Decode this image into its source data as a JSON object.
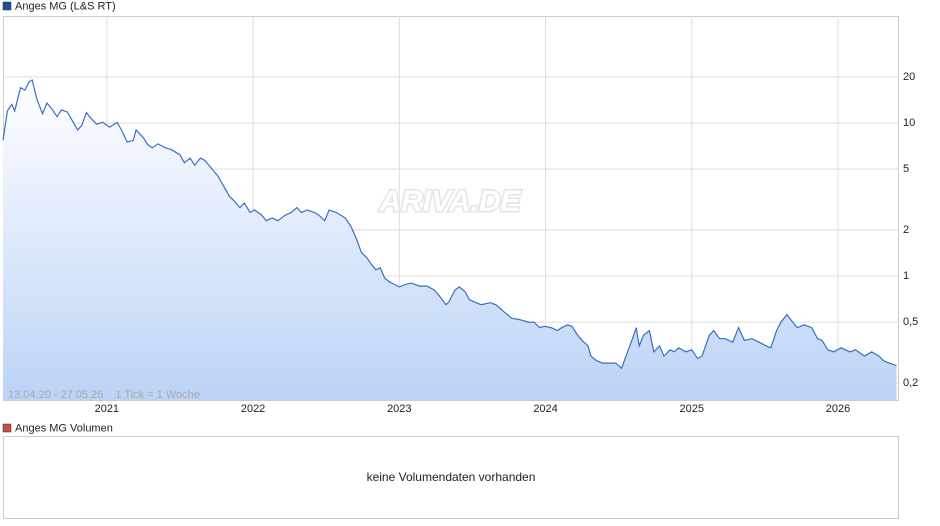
{
  "chart_data": [
    {
      "type": "line",
      "series": [
        {
          "name": "Anges MG (L&S RT)",
          "color": "#3a6fc4",
          "legend_color": "#1f4e9c",
          "values": [
            7.7,
            12.0,
            13.2,
            12,
            17,
            16.4,
            18.6,
            19.1,
            14.5,
            11.5,
            13.5,
            12.5,
            11,
            12.2,
            11.8,
            10.5,
            9.0,
            9.7,
            11.7,
            10.5,
            9.8,
            10.1,
            9.4,
            10.1,
            9.0,
            7.5,
            7.7,
            9.0,
            8.0,
            7.2,
            6.9,
            7.3,
            6.9,
            6.7,
            6.2,
            5.5,
            5.9,
            5.3,
            5.9,
            5.7,
            5.0,
            4.5,
            3.7,
            3.3,
            3.1,
            2.8,
            3.0,
            2.6,
            2.7,
            2.5,
            2.3,
            2.4,
            2.3,
            2.5,
            2.6,
            2.8,
            2.6,
            2.7,
            2.6,
            2.5,
            2.3,
            2.7,
            2.6,
            2.4,
            2.1,
            1.72,
            1.43,
            1.31,
            1.19,
            1.1,
            1.13,
            0.97,
            0.92,
            0.88,
            0.85,
            0.88,
            0.9,
            0.86,
            0.86,
            0.81,
            0.75,
            0.65,
            0.68,
            0.81,
            0.85,
            0.79,
            0.7,
            0.68,
            0.65,
            0.67,
            0.65,
            0.58,
            0.53,
            0.52,
            0.5,
            0.5,
            0.46,
            0.47,
            0.46,
            0.44,
            0.46,
            0.48,
            0.47,
            0.41,
            0.38,
            0.35,
            0.3,
            0.28,
            0.27,
            0.27,
            0.27,
            0.25,
            0.3,
            0.38,
            0.46,
            0.35,
            0.41,
            0.44,
            0.32,
            0.35,
            0.3,
            0.33,
            0.32,
            0.34,
            0.32,
            0.33,
            0.29,
            0.3,
            0.41,
            0.44,
            0.39,
            0.39,
            0.37,
            0.46,
            0.38,
            0.39,
            0.37,
            0.35,
            0.34,
            0.44,
            0.5,
            0.56,
            0.5,
            0.46,
            0.48,
            0.46,
            0.39,
            0.38,
            0.33,
            0.32,
            0.34,
            0.32,
            0.33,
            0.3,
            0.32,
            0.3,
            0.28,
            0.27,
            0.26
          ]
        }
      ],
      "x": [
        2020.29,
        2020.32,
        2020.35,
        2020.37,
        2020.41,
        2020.44,
        2020.47,
        2020.49,
        2020.52,
        2020.56,
        2020.59,
        2020.62,
        2020.66,
        2020.69,
        2020.73,
        2020.76,
        2020.8,
        2020.83,
        2020.86,
        2020.9,
        2020.93,
        2020.97,
        2021.02,
        2021.07,
        2021.1,
        2021.14,
        2021.18,
        2021.2,
        2021.25,
        2021.28,
        2021.31,
        2021.35,
        2021.4,
        2021.44,
        2021.5,
        2021.53,
        2021.57,
        2021.6,
        2021.64,
        2021.67,
        2021.72,
        2021.76,
        2021.81,
        2021.84,
        2021.87,
        2021.91,
        2021.94,
        2021.98,
        2022.01,
        2022.06,
        2022.09,
        2022.13,
        2022.17,
        2022.22,
        2022.26,
        2022.3,
        2022.33,
        2022.37,
        2022.42,
        2022.45,
        2022.49,
        2022.52,
        2022.57,
        2022.63,
        2022.67,
        2022.71,
        2022.74,
        2022.78,
        2022.81,
        2022.84,
        2022.87,
        2022.9,
        2022.93,
        2022.97,
        2023.0,
        2023.04,
        2023.08,
        2023.14,
        2023.19,
        2023.24,
        2023.27,
        2023.32,
        2023.34,
        2023.38,
        2023.41,
        2023.45,
        2023.48,
        2023.51,
        2023.56,
        2023.62,
        2023.66,
        2023.72,
        2023.77,
        2023.82,
        2023.88,
        2023.92,
        2023.96,
        2023.99,
        2024.04,
        2024.08,
        2024.11,
        2024.15,
        2024.18,
        2024.22,
        2024.25,
        2024.29,
        2024.31,
        2024.35,
        2024.39,
        2024.44,
        2024.48,
        2024.52,
        2024.55,
        2024.59,
        2024.62,
        2024.64,
        2024.67,
        2024.71,
        2024.74,
        2024.78,
        2024.81,
        2024.85,
        2024.88,
        2024.91,
        2024.96,
        2025.0,
        2025.04,
        2025.07,
        2025.12,
        2025.15,
        2025.19,
        2025.23,
        2025.28,
        2025.32,
        2025.36,
        2025.41,
        2025.46,
        2025.51,
        2025.54,
        2025.58,
        2025.61,
        2025.65,
        2025.69,
        2025.72,
        2025.77,
        2025.82,
        2025.86,
        2025.89,
        2025.93,
        2025.97,
        2026.02,
        2026.08,
        2026.12,
        2026.18,
        2026.23,
        2026.28,
        2026.31,
        2026.35,
        2026.4
      ],
      "xlim": [
        2020.29,
        2026.41
      ],
      "xticks": [
        2021,
        2022,
        2023,
        2024,
        2025,
        2026
      ],
      "ylim": [
        0.155,
        50
      ],
      "yticks": [
        {
          "value": 0.2,
          "label": "0,2"
        },
        {
          "value": 0.5,
          "label": "0,5"
        },
        1,
        2,
        5,
        10,
        20
      ],
      "log_scale": true,
      "grid": true,
      "date_range": "13.04.20 - 27.05.26",
      "tick_note": "1 Tick = 1 Woche",
      "watermark": "ARIVA.DE"
    },
    {
      "type": "bar",
      "series": [
        {
          "name": "Anges MG Volumen",
          "color": "#c0504d",
          "values": []
        }
      ],
      "note": "keine Volumendaten vorhanden"
    }
  ]
}
